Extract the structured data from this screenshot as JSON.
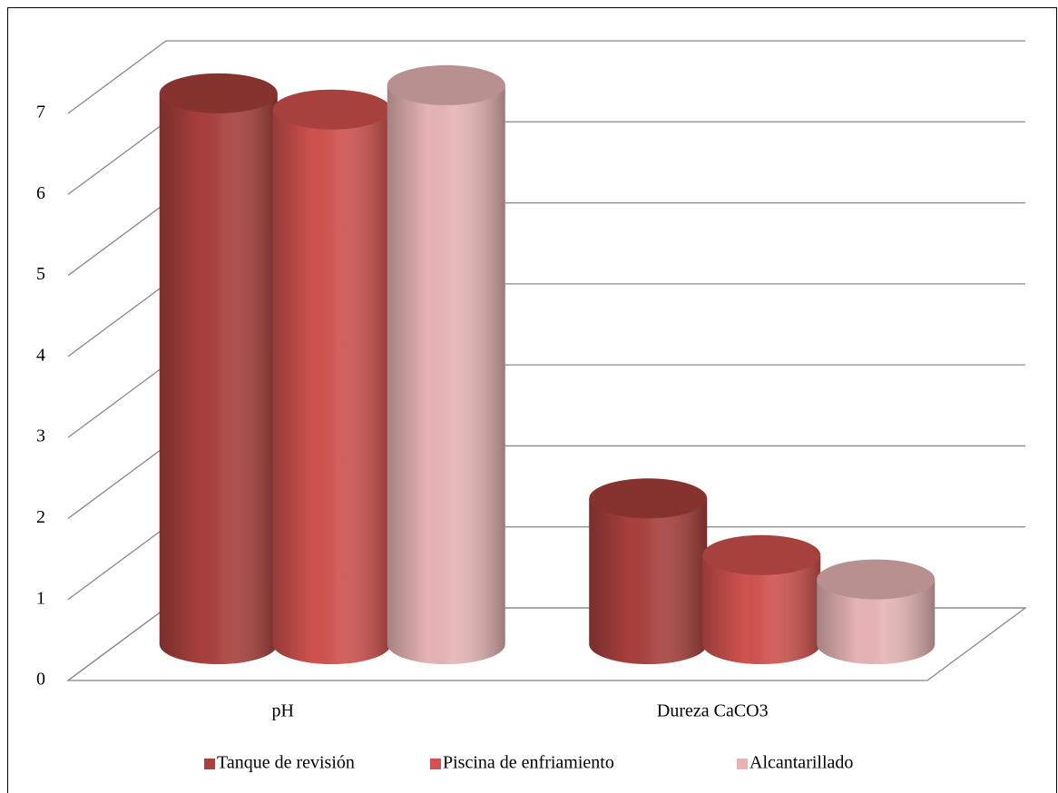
{
  "chart_data": {
    "type": "bar",
    "categories": [
      "pH",
      "Dureza  CaCO3"
    ],
    "series": [
      {
        "name": "Tanque de revisión",
        "color": "#a8403d",
        "values": [
          6.8,
          1.8
        ]
      },
      {
        "name": "Piscina de enfriamiento",
        "color": "#d0524e",
        "values": [
          6.6,
          1.1
        ]
      },
      {
        "name": "Alcantarillado",
        "color": "#e6b4b4",
        "values": [
          6.9,
          0.8
        ]
      }
    ],
    "ylim": [
      0,
      7
    ],
    "yticks": [
      0,
      1,
      2,
      3,
      4,
      5,
      6,
      7
    ],
    "grid": true,
    "legend": "bottom"
  }
}
